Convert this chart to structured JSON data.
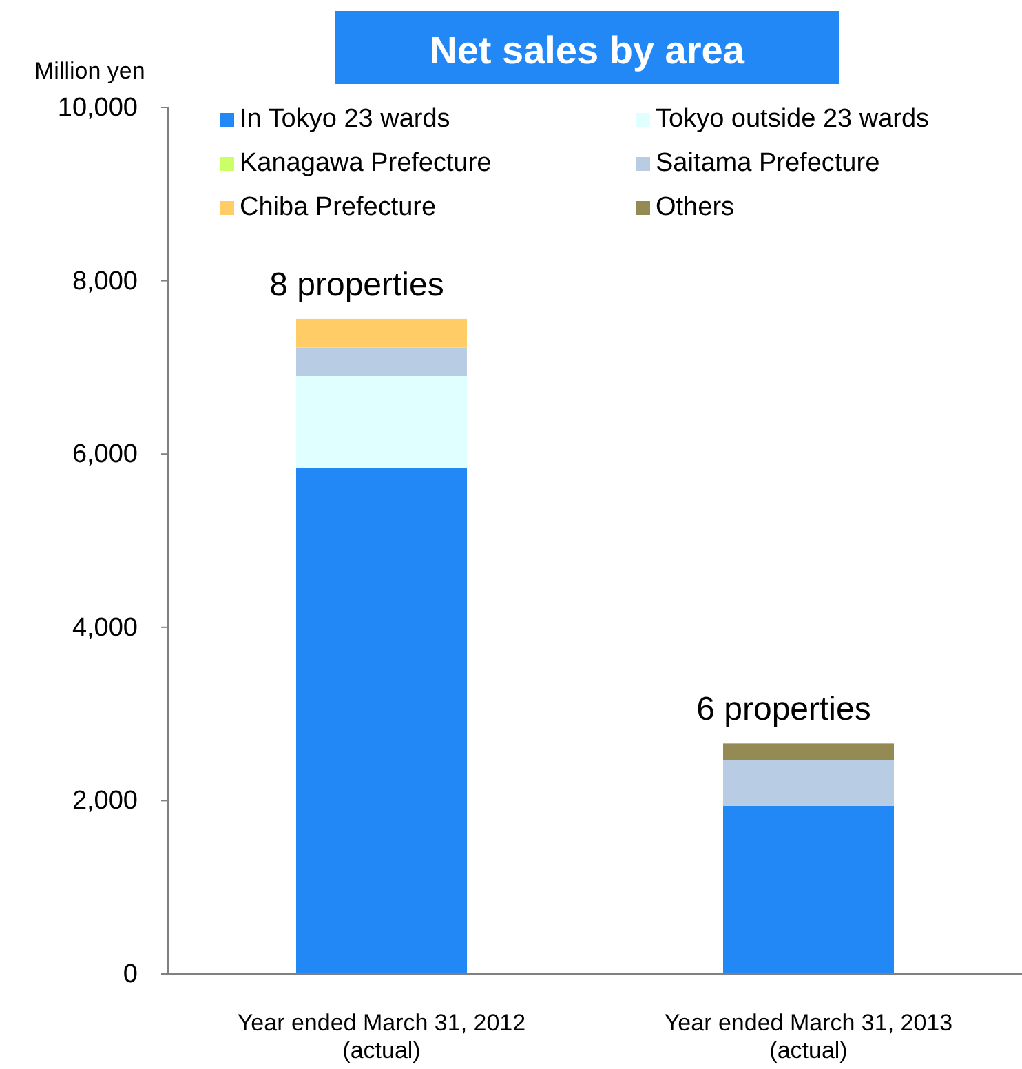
{
  "chart_data": {
    "type": "bar",
    "stacked": true,
    "title": "Net sales by area",
    "ylabel": "Million yen",
    "categories": [
      "Year ended March 31, 2012\n(actual)",
      "Year ended March 31, 2013\n(actual)"
    ],
    "series": [
      {
        "name": "In Tokyo 23 wards",
        "color": "#2288f5",
        "values": [
          5840,
          1940
        ]
      },
      {
        "name": "Tokyo outside 23 wards",
        "color": "#e0ffff",
        "values": [
          1060,
          0
        ]
      },
      {
        "name": "Kanagawa Prefecture",
        "color": "#ccff66",
        "values": [
          0,
          0
        ]
      },
      {
        "name": "Saitama Prefecture",
        "color": "#b8cce4",
        "values": [
          330,
          530
        ]
      },
      {
        "name": "Chiba Prefecture",
        "color": "#ffcc66",
        "values": [
          330,
          0
        ]
      },
      {
        "name": "Others",
        "color": "#948a54",
        "values": [
          0,
          190
        ]
      }
    ],
    "ylim": [
      0,
      10000
    ],
    "yticks": [
      {
        "value": 0,
        "label": "0"
      },
      {
        "value": 2000,
        "label": "2,000"
      },
      {
        "value": 4000,
        "label": "4,000"
      },
      {
        "value": 6000,
        "label": "6,000"
      },
      {
        "value": 8000,
        "label": "8,000"
      },
      {
        "value": 10000,
        "label": "10,000"
      }
    ],
    "legend": "top",
    "annotations": [
      {
        "text": "8 properties",
        "x": "Year ended March 31, 2012\n(actual)",
        "y": 7560
      },
      {
        "text": "6 properties",
        "x": "Year ended March 31, 2013\n(actual)",
        "y": 2660
      }
    ]
  }
}
